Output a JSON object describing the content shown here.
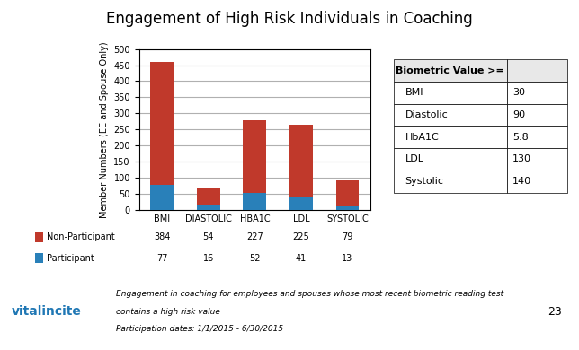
{
  "chart_data": {
    "type": "bar",
    "stacked": true,
    "title": "Engagement of High Risk Individuals in Coaching",
    "ylabel": "Member Numbers (EE and Spouse Only)",
    "categories": [
      "BMI",
      "DIASTOLIC",
      "HBA1C",
      "LDL",
      "SYSTOLIC"
    ],
    "series": [
      {
        "name": "Non-Participant",
        "color": "#C0392B",
        "values": [
          384,
          54,
          227,
          225,
          79
        ]
      },
      {
        "name": "Participant",
        "color": "#2980B9",
        "values": [
          77,
          16,
          52,
          41,
          13
        ]
      }
    ],
    "ylim": [
      0,
      500
    ],
    "yticks": [
      0,
      50,
      100,
      150,
      200,
      250,
      300,
      350,
      400,
      450,
      500
    ],
    "grid": true,
    "table": {
      "header": "Biometric Value >=",
      "rows": [
        [
          "BMI",
          "30"
        ],
        [
          "Diastolic",
          "90"
        ],
        [
          "HbA1C",
          "5.8"
        ],
        [
          "LDL",
          "130"
        ],
        [
          "Systolic",
          "140"
        ]
      ]
    },
    "annotations": [
      "vitalincite",
      "Engagement in coaching for employees and spouses whose most recent biometric reading test",
      "contains a high risk value",
      "Participation dates: 1/1/2015 - 6/30/2015",
      "23"
    ]
  }
}
